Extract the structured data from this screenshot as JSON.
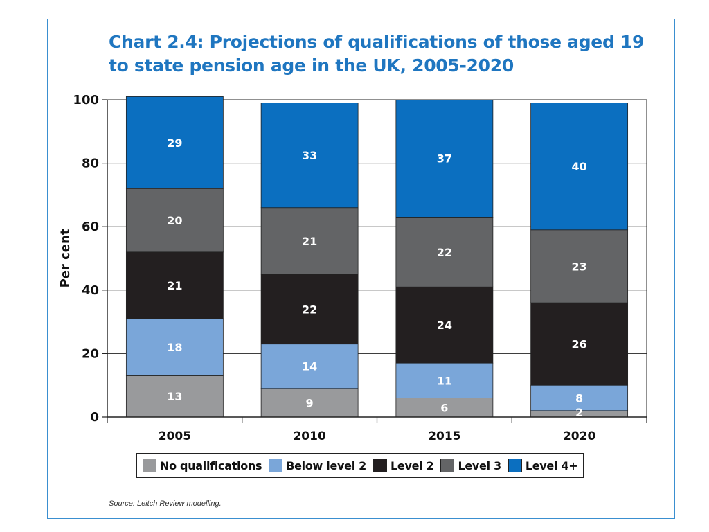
{
  "title": "Chart 2.4: Projections of qualifications of those aged 19 to state pension age in the UK, 2005-2020",
  "source": "Source: Leitch Review modelling.",
  "chart_data": {
    "type": "bar",
    "stacked": true,
    "title": "Chart 2.4: Projections of qualifications of those aged 19 to state pension age in the UK, 2005-2020",
    "xlabel": "",
    "ylabel": "Per cent",
    "ylim": [
      0,
      100
    ],
    "yticks": [
      "0",
      "20",
      "40",
      "60",
      "80",
      "100"
    ],
    "categories": [
      "2005",
      "2010",
      "2015",
      "2020"
    ],
    "series": [
      {
        "name": "No qualifications",
        "values": [
          13,
          9,
          6,
          2
        ],
        "labels": [
          "13",
          "9",
          "6",
          "2"
        ],
        "color": "#999a9c"
      },
      {
        "name": "Below level 2",
        "values": [
          18,
          14,
          11,
          8
        ],
        "labels": [
          "18",
          "14",
          "11",
          "8"
        ],
        "color": "#7aa6d9"
      },
      {
        "name": "Level 2",
        "values": [
          21,
          22,
          24,
          26
        ],
        "labels": [
          "21",
          "22",
          "24",
          "26"
        ],
        "color": "#231f20"
      },
      {
        "name": "Level 3",
        "values": [
          20,
          21,
          22,
          23
        ],
        "labels": [
          "20",
          "21",
          "22",
          "23"
        ],
        "color": "#636466"
      },
      {
        "name": "Level 4+",
        "values": [
          29,
          33,
          37,
          40
        ],
        "labels": [
          "29",
          "33",
          "37",
          "40"
        ],
        "color": "#0b6fc0"
      }
    ],
    "grid": true,
    "legend_position": "bottom"
  }
}
